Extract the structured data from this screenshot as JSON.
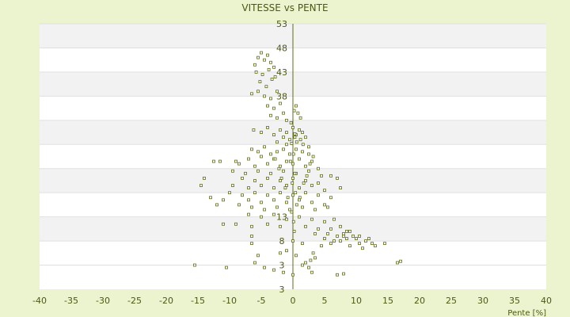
{
  "chart_data": {
    "type": "scatter",
    "title": "VITESSE vs PENTE",
    "xlabel": "Pente [%]",
    "ylabel": "",
    "xlim": [
      -40,
      40
    ],
    "ylim": [
      -2,
      53
    ],
    "x_ticks": [
      -40,
      -35,
      -30,
      -25,
      -20,
      -15,
      -10,
      -5,
      0,
      5,
      10,
      15,
      20,
      25,
      30,
      35,
      40
    ],
    "y_ticks": [
      3,
      8,
      13,
      18,
      23,
      28,
      33,
      38,
      43,
      48,
      53
    ],
    "y_tick_labels": [
      "3",
      "8",
      "13",
      "",
      "",
      "",
      "",
      "38",
      "43",
      "48",
      "53"
    ],
    "bottom_left_label": "3",
    "grid": true,
    "marker_color": "#5c6e14",
    "series": [
      {
        "points": [
          [
            -5.5,
            46
          ],
          [
            -5,
            47
          ],
          [
            -4.5,
            45.5
          ],
          [
            -6,
            44.5
          ],
          [
            -4,
            46.5
          ],
          [
            -3.5,
            45
          ],
          [
            -5.8,
            43
          ],
          [
            -4.8,
            42.5
          ],
          [
            -3.8,
            43.5
          ],
          [
            -3,
            44
          ],
          [
            -5.2,
            41
          ],
          [
            -4.2,
            40
          ],
          [
            -3.3,
            41.5
          ],
          [
            -2.8,
            42
          ],
          [
            -5.5,
            39
          ],
          [
            -4.5,
            38
          ],
          [
            -3.5,
            37.5
          ],
          [
            -2.5,
            39
          ],
          [
            -6.5,
            38.5
          ],
          [
            -2,
            36.5
          ],
          [
            -3,
            35.5
          ],
          [
            -4,
            36
          ],
          [
            -1.5,
            34.5
          ],
          [
            -2.5,
            33.5
          ],
          [
            -3.5,
            34
          ],
          [
            -1,
            33
          ],
          [
            0.2,
            35
          ],
          [
            0.8,
            34.5
          ],
          [
            1.2,
            33.5
          ],
          [
            0.5,
            36
          ],
          [
            -6.2,
            31
          ],
          [
            -5,
            30.5
          ],
          [
            -4,
            31.5
          ],
          [
            -3,
            30
          ],
          [
            -2,
            31
          ],
          [
            -1,
            30.5
          ],
          [
            0,
            31.5
          ],
          [
            0.5,
            30
          ],
          [
            1,
            31
          ],
          [
            1.5,
            30.5
          ],
          [
            -1.5,
            29.5
          ],
          [
            -0.5,
            29
          ],
          [
            0.3,
            29.5
          ],
          [
            1.2,
            29
          ],
          [
            2,
            29.5
          ],
          [
            -2.5,
            28.5
          ],
          [
            -1,
            28
          ],
          [
            0.6,
            28.5
          ],
          [
            1.6,
            28
          ],
          [
            2.5,
            27.5
          ],
          [
            -6.5,
            27
          ],
          [
            -5.5,
            26.5
          ],
          [
            -4.5,
            27.5
          ],
          [
            -3.5,
            26
          ],
          [
            -2.5,
            26.5
          ],
          [
            -1.5,
            27
          ],
          [
            -0.5,
            26
          ],
          [
            0.5,
            27
          ],
          [
            1.5,
            26.5
          ],
          [
            2.5,
            26
          ],
          [
            3.2,
            25.5
          ],
          [
            -7,
            25
          ],
          [
            -5,
            25.5
          ],
          [
            -3,
            25
          ],
          [
            -1,
            24.5
          ],
          [
            1,
            25
          ],
          [
            3,
            24.5
          ],
          [
            -8.5,
            24
          ],
          [
            -6,
            23.5
          ],
          [
            -4,
            24
          ],
          [
            -2,
            23.5
          ],
          [
            0,
            24
          ],
          [
            2,
            23.5
          ],
          [
            4,
            23
          ],
          [
            -12.5,
            24.5
          ],
          [
            -11.5,
            24.5
          ],
          [
            -9,
            24.5
          ],
          [
            -9.5,
            22.5
          ],
          [
            -7.5,
            22
          ],
          [
            -5.5,
            22.5
          ],
          [
            -3.5,
            22
          ],
          [
            -1.5,
            22.5
          ],
          [
            0.5,
            22
          ],
          [
            2.5,
            22.5
          ],
          [
            4.5,
            21.5
          ],
          [
            6,
            21.5
          ],
          [
            -14,
            21
          ],
          [
            -8,
            21
          ],
          [
            -6,
            20.5
          ],
          [
            -4,
            21
          ],
          [
            -2,
            20.5
          ],
          [
            0,
            21
          ],
          [
            2,
            20.5
          ],
          [
            4,
            20
          ],
          [
            7,
            21
          ],
          [
            -14.5,
            19.5
          ],
          [
            -9.5,
            19.5
          ],
          [
            -7,
            19
          ],
          [
            -5,
            19.5
          ],
          [
            -3,
            19
          ],
          [
            -1,
            19.5
          ],
          [
            1,
            19
          ],
          [
            3,
            19.5
          ],
          [
            5,
            18.5
          ],
          [
            7.5,
            19
          ],
          [
            -10,
            18
          ],
          [
            -8,
            17.5
          ],
          [
            -6,
            18
          ],
          [
            -4,
            17.5
          ],
          [
            -2,
            18
          ],
          [
            0,
            17.5
          ],
          [
            2,
            18
          ],
          [
            4,
            17.5
          ],
          [
            6,
            17
          ],
          [
            -13,
            17
          ],
          [
            -11,
            16.5
          ],
          [
            -7,
            16.5
          ],
          [
            -5,
            16
          ],
          [
            -3,
            16.5
          ],
          [
            -1,
            16
          ],
          [
            1,
            16.5
          ],
          [
            3,
            16
          ],
          [
            5,
            15.5
          ],
          [
            -12,
            15.5
          ],
          [
            -8.5,
            15.5
          ],
          [
            -6.5,
            15
          ],
          [
            -4.5,
            14.5
          ],
          [
            -2.5,
            15
          ],
          [
            -0.5,
            14.5
          ],
          [
            1.5,
            15
          ],
          [
            3.5,
            14.5
          ],
          [
            5.5,
            15
          ],
          [
            -7,
            13.5
          ],
          [
            -5,
            13
          ],
          [
            -3,
            13.5
          ],
          [
            -1,
            12.5
          ],
          [
            1,
            13
          ],
          [
            3,
            12.5
          ],
          [
            5,
            12
          ],
          [
            6.5,
            12.5
          ],
          [
            -11,
            11.5
          ],
          [
            -9,
            11.5
          ],
          [
            -6.5,
            11
          ],
          [
            -4,
            11.5
          ],
          [
            -2,
            11
          ],
          [
            2,
            11
          ],
          [
            4,
            10.5
          ],
          [
            6,
            10.5
          ],
          [
            7.5,
            11
          ],
          [
            8.5,
            10
          ],
          [
            3.5,
            9.5
          ],
          [
            5.5,
            9.5
          ],
          [
            7,
            9
          ],
          [
            8,
            9.5
          ],
          [
            9.5,
            9
          ],
          [
            10.5,
            9
          ],
          [
            5,
            8.5
          ],
          [
            6.5,
            8
          ],
          [
            8.5,
            8.5
          ],
          [
            10,
            8.5
          ],
          [
            11.5,
            8
          ],
          [
            12.5,
            7.5
          ],
          [
            -6.5,
            9
          ],
          [
            -6.5,
            7.5
          ],
          [
            0,
            8
          ],
          [
            1.5,
            7.5
          ],
          [
            4.5,
            7
          ],
          [
            6,
            7.5
          ],
          [
            9,
            7
          ],
          [
            10.5,
            7.5
          ],
          [
            14.5,
            7.5
          ],
          [
            13,
            7
          ],
          [
            11,
            6.5
          ],
          [
            12,
            8.5
          ],
          [
            8,
            9
          ],
          [
            9,
            10
          ],
          [
            7.5,
            8
          ],
          [
            3.2,
            5.5
          ],
          [
            3.5,
            4.5
          ],
          [
            2.8,
            4
          ],
          [
            2,
            3.5
          ],
          [
            2.5,
            2.5
          ],
          [
            1.5,
            3
          ],
          [
            -6,
            3.5
          ],
          [
            -15.5,
            3
          ],
          [
            -10.5,
            2.5
          ],
          [
            -4.5,
            2.5
          ],
          [
            -3,
            2
          ],
          [
            -1.5,
            1.5
          ],
          [
            0,
            1
          ],
          [
            3,
            1.5
          ],
          [
            7,
            1
          ],
          [
            8,
            1.2
          ],
          [
            16.5,
            3.5
          ],
          [
            17,
            3.8
          ],
          [
            -1,
            6
          ],
          [
            0.5,
            5
          ],
          [
            -2,
            5.5
          ],
          [
            -5.5,
            5
          ],
          [
            -0.3,
            32.5
          ],
          [
            0.1,
            12
          ],
          [
            0.2,
            10
          ],
          [
            -0.2,
            14
          ],
          [
            0.4,
            18
          ],
          [
            -0.1,
            20
          ],
          [
            0.3,
            22
          ],
          [
            -0.4,
            24.5
          ],
          [
            0.1,
            26
          ],
          [
            -0.2,
            28.2
          ],
          [
            0.3,
            30.2
          ],
          [
            0.6,
            15.5
          ],
          [
            1.1,
            17
          ],
          [
            1.7,
            20
          ],
          [
            2.2,
            21.5
          ],
          [
            2.7,
            24
          ],
          [
            -0.8,
            17
          ],
          [
            -1.2,
            19
          ],
          [
            -1.8,
            21
          ],
          [
            -2.2,
            23
          ],
          [
            -2.8,
            25
          ]
        ]
      }
    ]
  }
}
